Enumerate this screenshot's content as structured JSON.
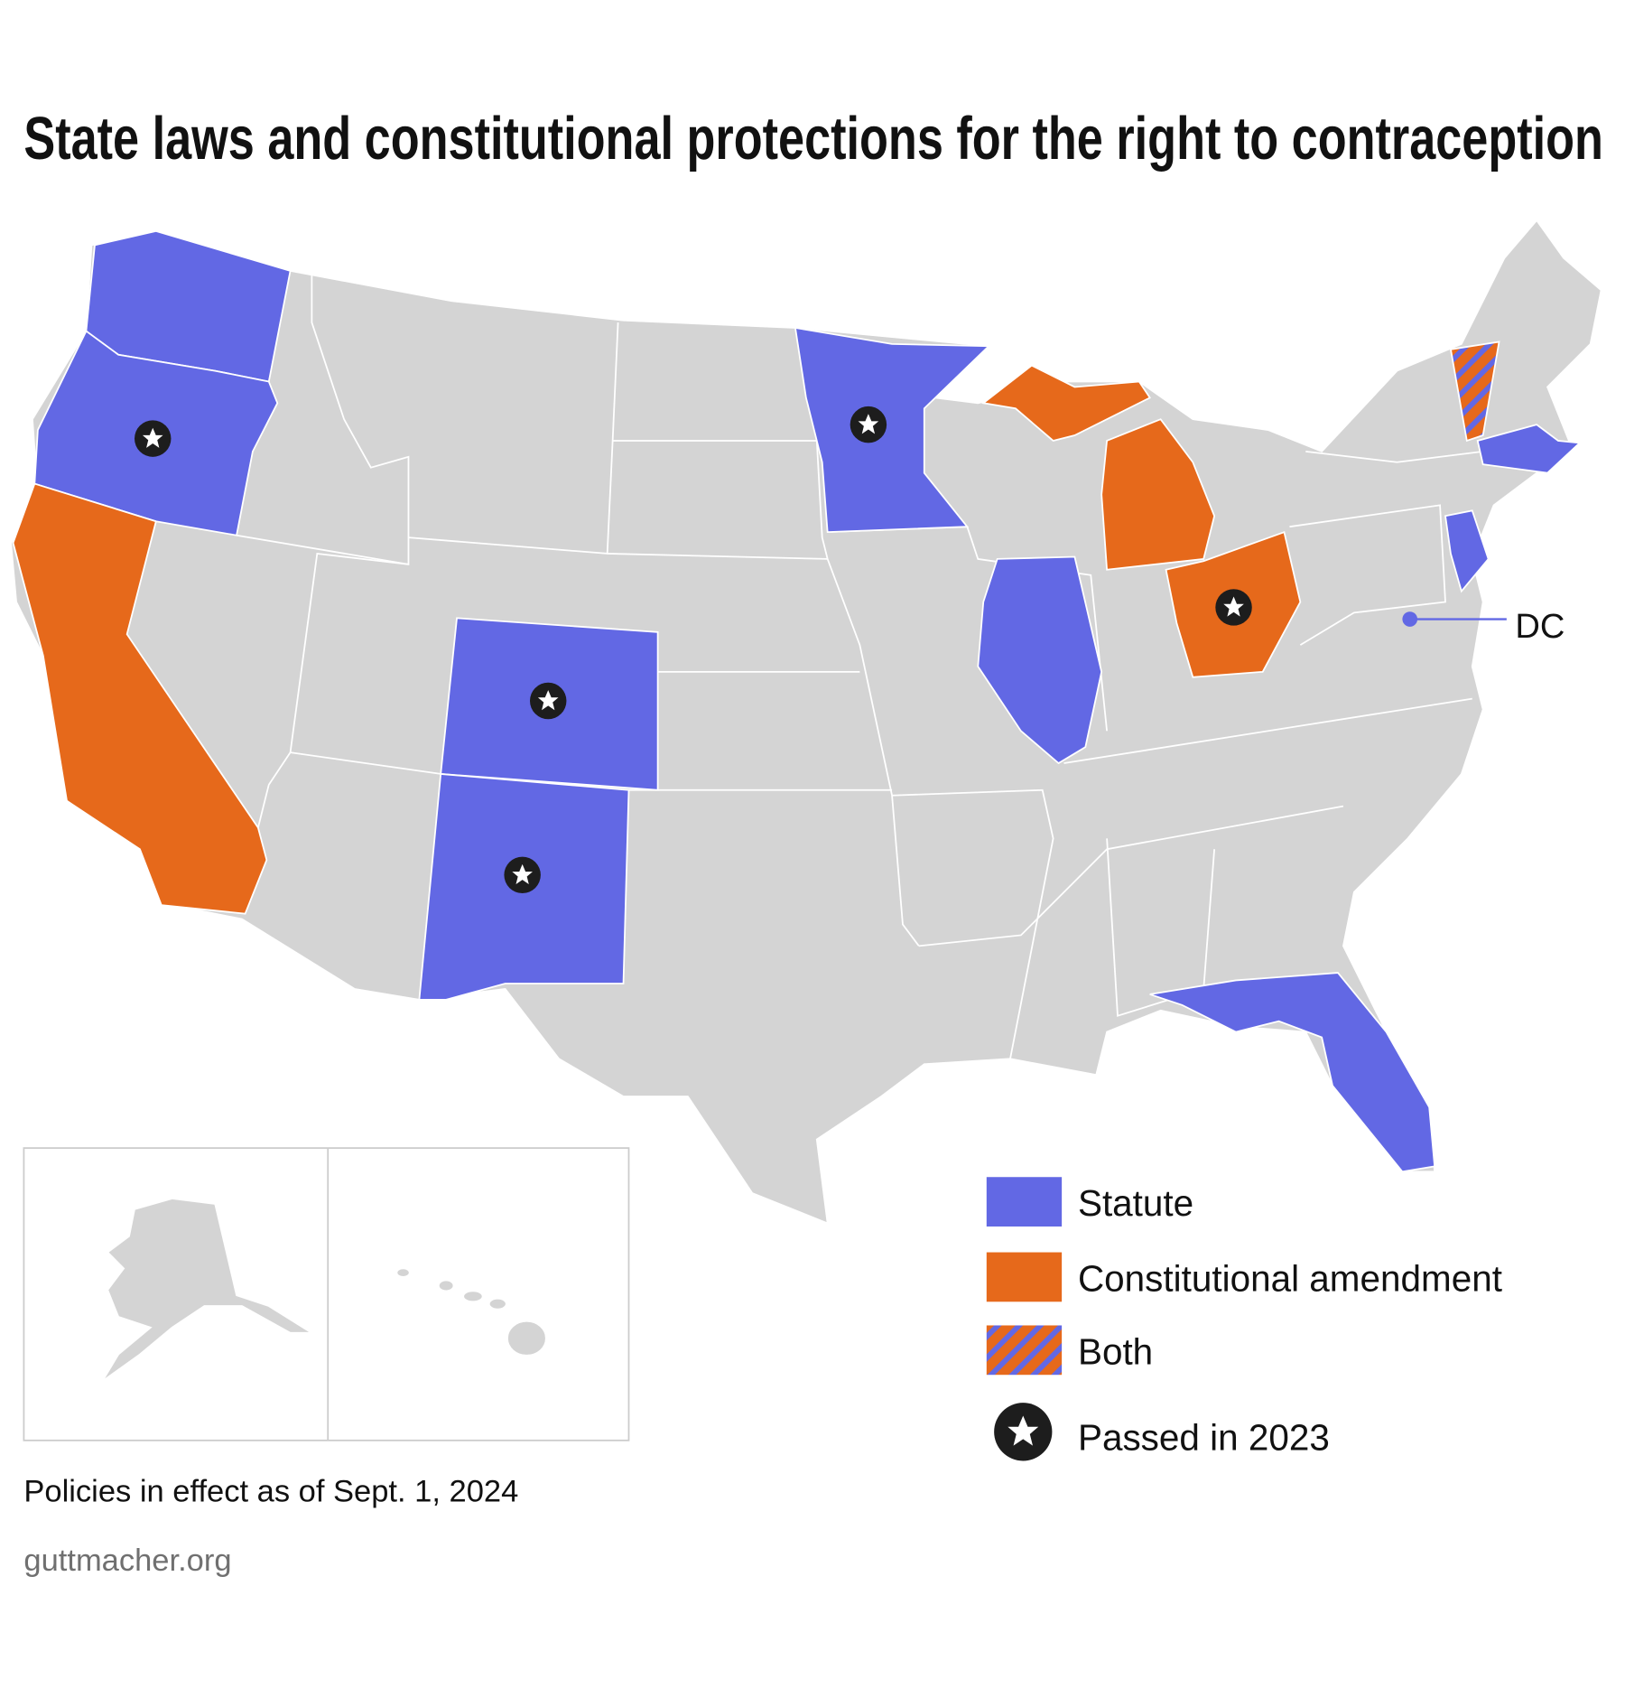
{
  "title": "State laws and constitutional protections for the right to contraception",
  "legend": [
    {
      "label": "Statute"
    },
    {
      "label": "Constitutional amendment"
    },
    {
      "label": "Both"
    },
    {
      "label": "Passed in 2023"
    }
  ],
  "dc_label": "DC",
  "note": "Policies in effect as of Sept. 1, 2024",
  "source": "guttmacher.org"
}
